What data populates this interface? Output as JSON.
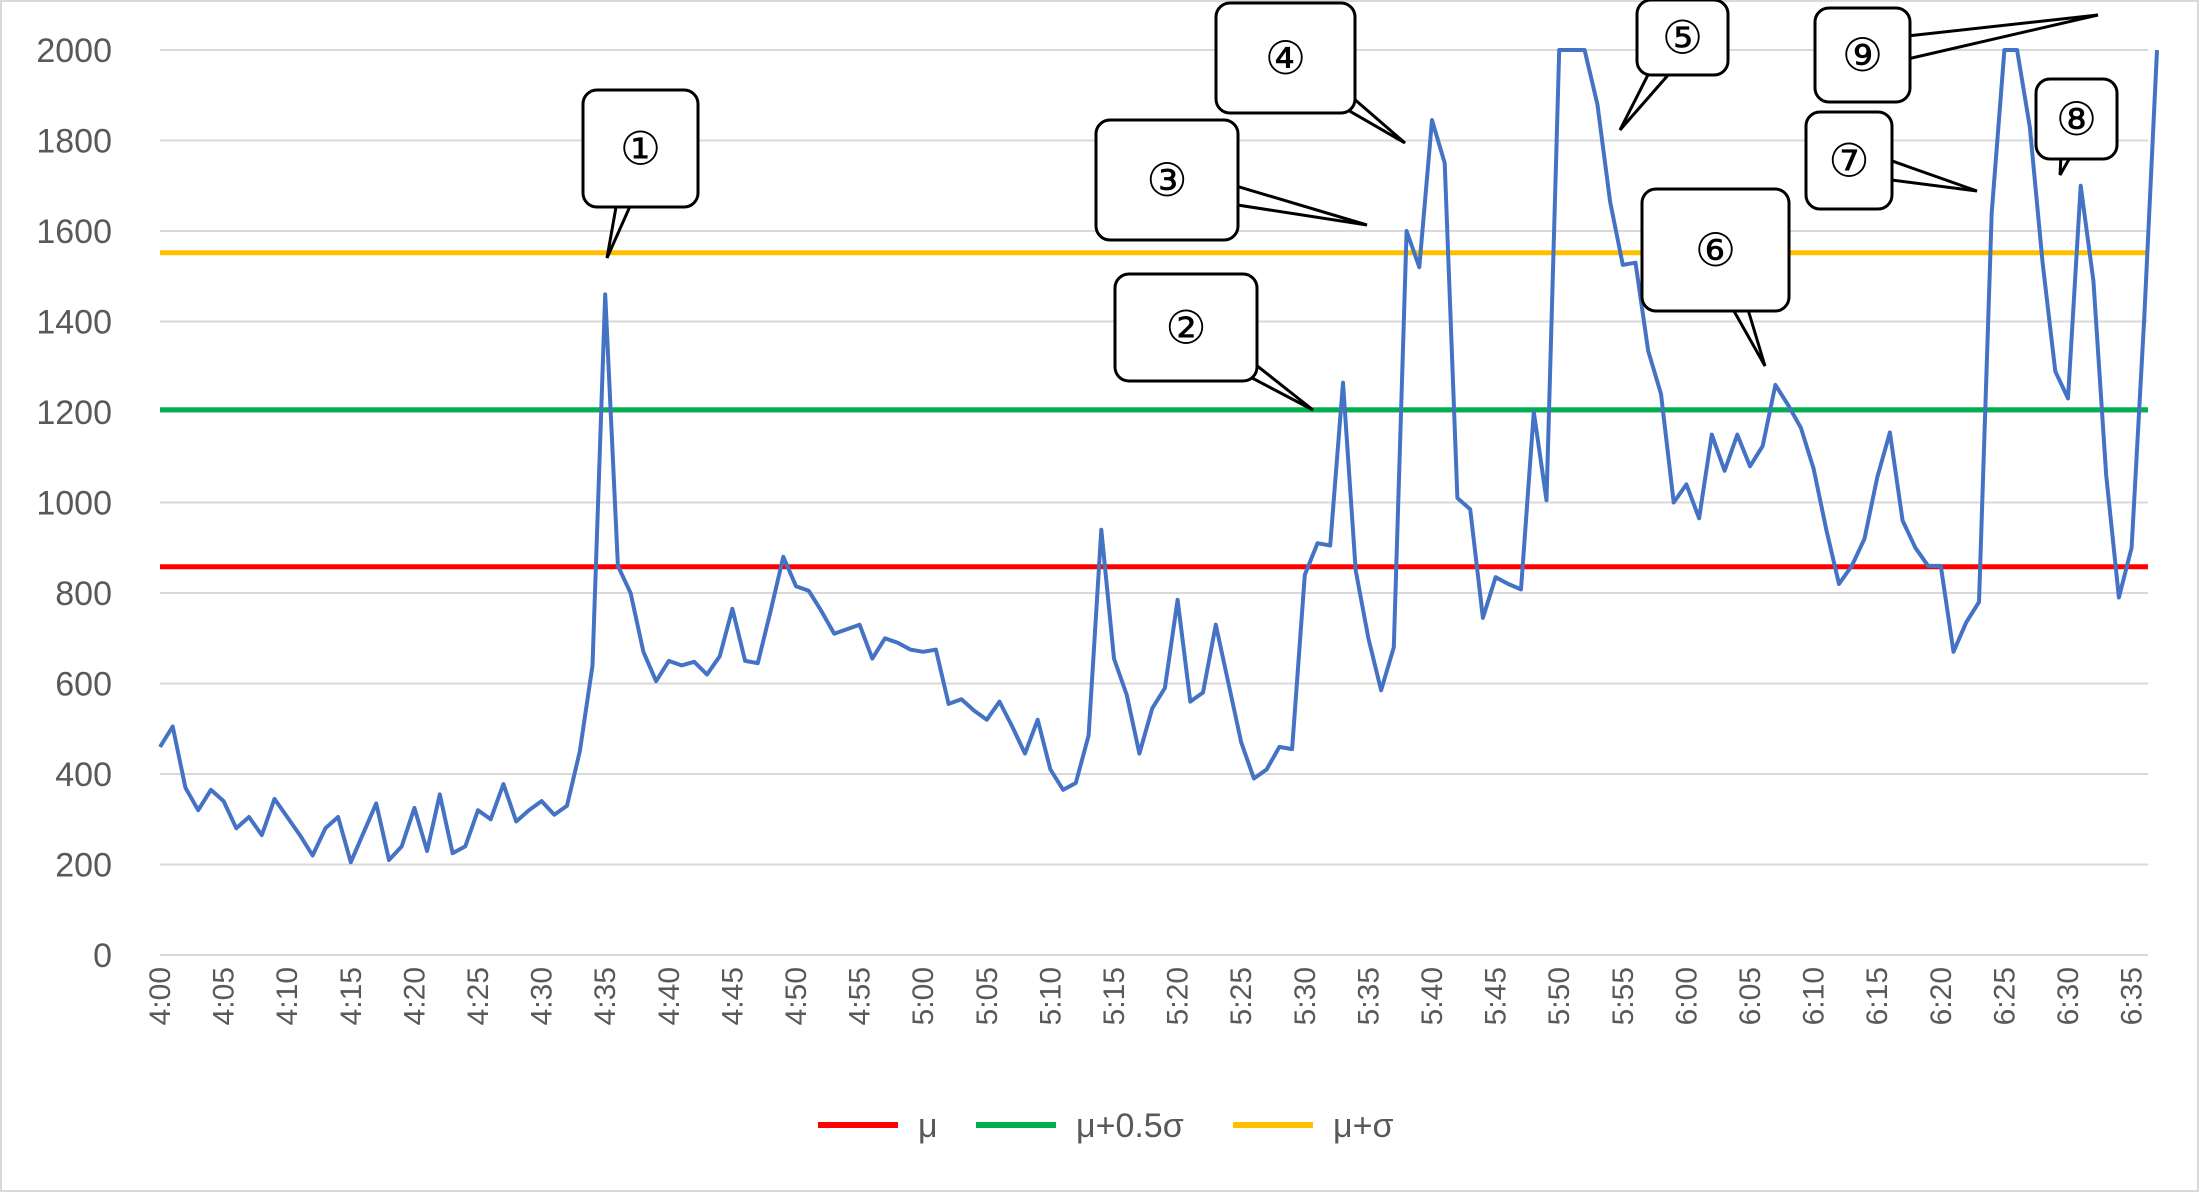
{
  "chart_data": {
    "type": "line",
    "title": "",
    "xlabel": "",
    "ylabel": "",
    "ylim": [
      0,
      2000
    ],
    "y_ticks": [
      "0",
      "200",
      "400",
      "600",
      "800",
      "1000",
      "1200",
      "1400",
      "1600",
      "1800",
      "2000"
    ],
    "x_ticks": [
      "4:00",
      "4:05",
      "4:10",
      "4:15",
      "4:20",
      "4:25",
      "4:30",
      "4:35",
      "4:40",
      "4:45",
      "4:50",
      "4:55",
      "5:00",
      "5:05",
      "5:10",
      "5:15",
      "5:20",
      "5:25",
      "5:30",
      "5:35",
      "5:40",
      "5:45",
      "5:50",
      "5:55",
      "6:00",
      "6:05",
      "6:10",
      "6:15",
      "6:20",
      "6:25",
      "6:30",
      "6:35"
    ],
    "grid": true,
    "legend_position": "bottom",
    "series": [
      {
        "name": "",
        "color": "#4472C4",
        "x_start": "4:00",
        "x_interval_minutes": 1,
        "values": [
          460,
          505,
          370,
          320,
          365,
          340,
          280,
          305,
          265,
          345,
          305,
          265,
          220,
          280,
          305,
          205,
          270,
          335,
          210,
          240,
          325,
          230,
          355,
          225,
          240,
          320,
          300,
          378,
          295,
          320,
          340,
          310,
          330,
          450,
          640,
          1460,
          860,
          800,
          670,
          605,
          650,
          640,
          648,
          620,
          660,
          765,
          650,
          645,
          760,
          880,
          815,
          805,
          760,
          710,
          720,
          730,
          655,
          700,
          690,
          675,
          670,
          675,
          555,
          565,
          540,
          520,
          560,
          505,
          445,
          520,
          410,
          365,
          380,
          485,
          940,
          655,
          575,
          445,
          545,
          590,
          785,
          560,
          580,
          730,
          600,
          470,
          390,
          410,
          460,
          455,
          840,
          910,
          905,
          1265,
          850,
          700,
          585,
          680,
          1600,
          1520,
          1845,
          1750,
          1010,
          985,
          745,
          835,
          820,
          808,
          1200,
          1005,
          2000,
          2000,
          2000,
          1880,
          1665,
          1525,
          1530,
          1335,
          1240,
          1000,
          1040,
          965,
          1150,
          1070,
          1150,
          1080,
          1125,
          1260,
          1215,
          1165,
          1075,
          940,
          820,
          860,
          920,
          1055,
          1155,
          960,
          900,
          860,
          860,
          670,
          735,
          780,
          1640,
          2000,
          2000,
          1830,
          1530,
          1290,
          1230,
          1700,
          1490,
          1060,
          790,
          900,
          1410,
          2000
        ]
      },
      {
        "name": "μ",
        "color": "#FF0000",
        "value": 858
      },
      {
        "name": "μ+0.5σ",
        "color": "#00B050",
        "value": 1205
      },
      {
        "name": "μ+σ",
        "color": "#FFC000",
        "value": 1552
      }
    ],
    "annotations": [
      {
        "label": "①",
        "time": "4:35"
      },
      {
        "label": "②",
        "time": "5:32"
      },
      {
        "label": "③",
        "time": "5:36"
      },
      {
        "label": "④",
        "time": "5:39"
      },
      {
        "label": "⑤",
        "time": "5:55"
      },
      {
        "label": "⑥",
        "time": "6:08"
      },
      {
        "label": "⑦",
        "time": "6:28"
      },
      {
        "label": "⑧",
        "time": "6:31"
      },
      {
        "label": "⑨",
        "time": "6:35"
      }
    ]
  }
}
